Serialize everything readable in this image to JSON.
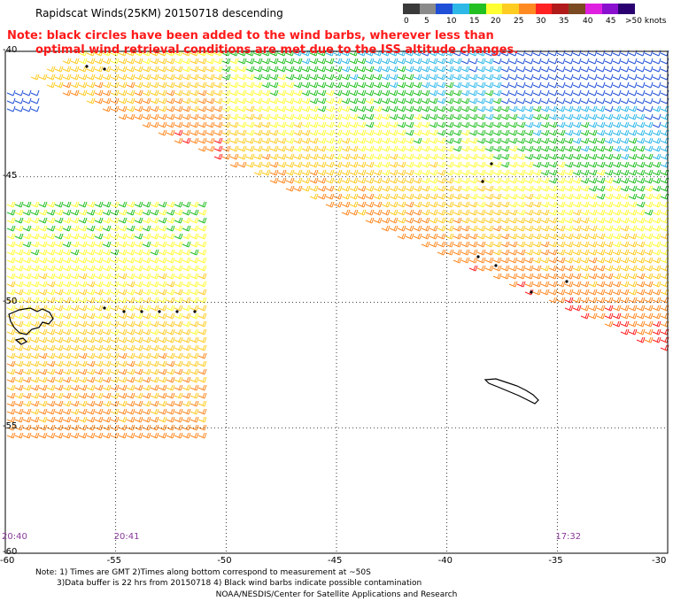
{
  "title": "Rapidscat Winds(25KM) 20150718 descending",
  "note": {
    "line1": "Note: black circles have been added to the wind barbs, wherever less than",
    "line2": "optimal wind retrieval conditions are met due to the ISS altitude changes."
  },
  "colorbar": {
    "colors": [
      "#3a3a3a",
      "#8a8a8a",
      "#1f4fd6",
      "#2eb8e8",
      "#22c022",
      "#ffff33",
      "#ffcc22",
      "#ff8a22",
      "#ff2222",
      "#b01a1a",
      "#7a4a22",
      "#e020e0",
      "#8a10d0",
      "#2a0070"
    ],
    "labels": [
      "0",
      "5",
      "10",
      "15",
      "20",
      "25",
      "30",
      "35",
      "40",
      "45",
      ">50 knots"
    ]
  },
  "map": {
    "lon_min": -60,
    "lon_max": -30,
    "lat_top": -40,
    "lat_bottom": -60,
    "lon_ticks": [
      "-60",
      "-55",
      "-50",
      "-45",
      "-40",
      "-35",
      "-30"
    ],
    "lat_ticks": [
      "-40",
      "-45",
      "-50",
      "-55",
      "-60"
    ],
    "times": [
      {
        "label": "20:40",
        "lon": -60
      },
      {
        "label": "20:41",
        "lon": -55
      },
      {
        "label": "17:32",
        "lon": -35
      }
    ]
  },
  "footer": {
    "line1": "Note: 1) Times are GMT 2)Times along bottom correspond to measurement at ~50S",
    "line2": "3)Data buffer is 22 hrs from 20150718 4) Black wind barbs indicate possible contamination",
    "credit": "NOAA/NESDIS/Center for Satellite Applications and Research"
  }
}
